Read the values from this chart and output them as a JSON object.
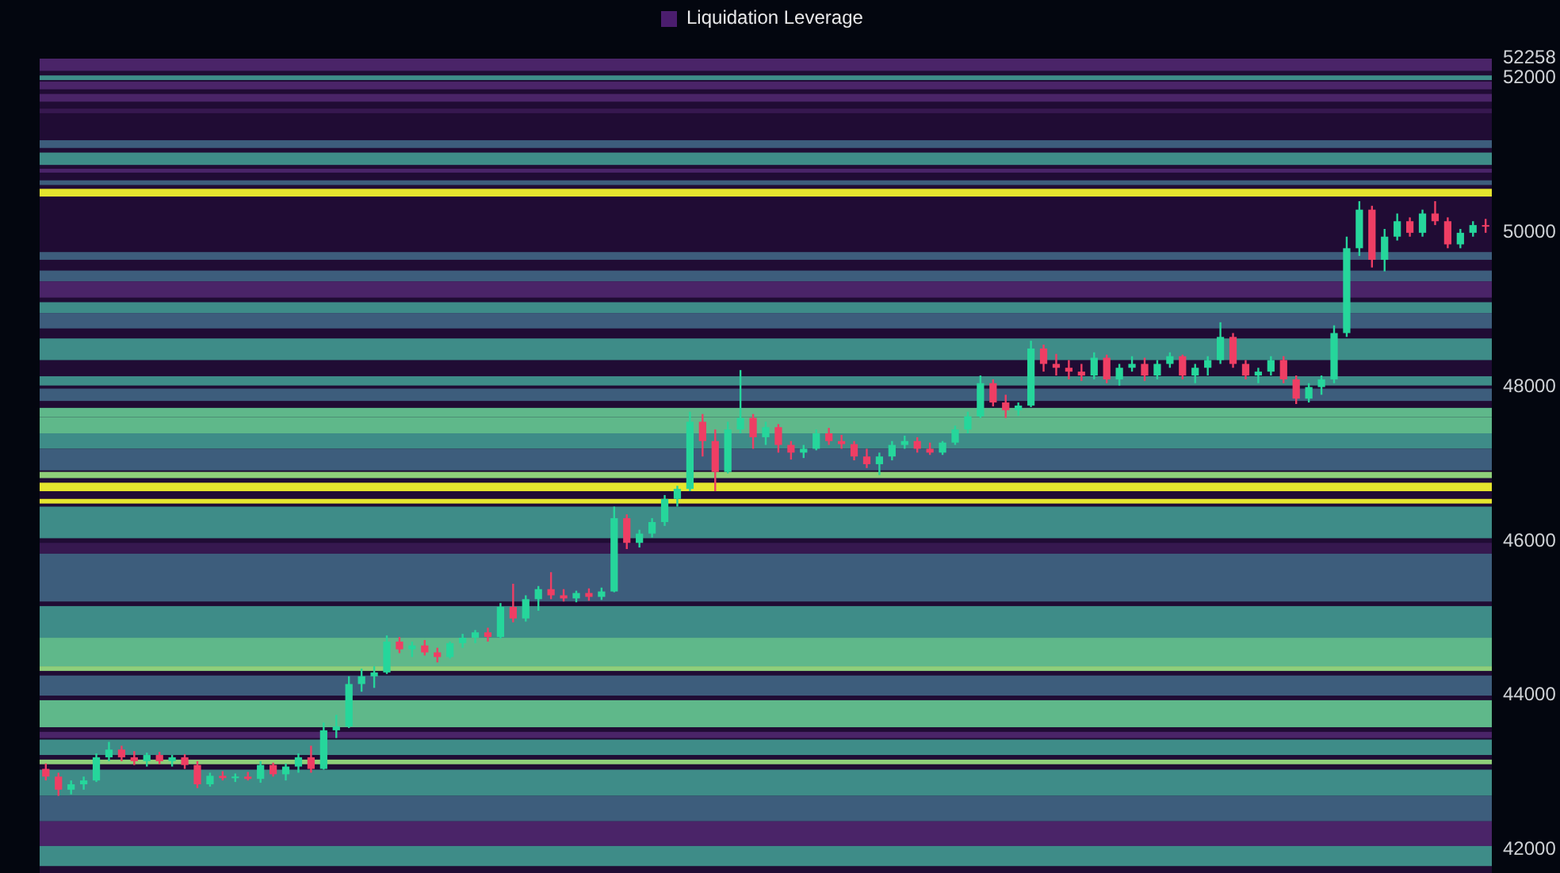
{
  "chart_data": {
    "type": "candlestick",
    "legend_title": "Liquidation Leverage",
    "categories": [
      null,
      null,
      null,
      null,
      null,
      null,
      null,
      null,
      null,
      null,
      null,
      null,
      null,
      null,
      null,
      null,
      null,
      null,
      null,
      null,
      null,
      null,
      null,
      null,
      null,
      null,
      null,
      null,
      null,
      null,
      null,
      null,
      null,
      null,
      null,
      null,
      null,
      null,
      null,
      null,
      null,
      null,
      null,
      null,
      null,
      null,
      null,
      null,
      null,
      null,
      null,
      null,
      null,
      null,
      null,
      null,
      null,
      null,
      null,
      null,
      null,
      null,
      null,
      null,
      null,
      null,
      null,
      null,
      null,
      null,
      null,
      null,
      null,
      null,
      null,
      null,
      null,
      null,
      null,
      null,
      null,
      null,
      null,
      null,
      null,
      null,
      null,
      null,
      null,
      null,
      null,
      null,
      null,
      null,
      null,
      null,
      null,
      null,
      null,
      null,
      null,
      null,
      null,
      null,
      null,
      null,
      null,
      null,
      null,
      null,
      null,
      null,
      null,
      null,
      null
    ],
    "ylim": [
      41700,
      52258
    ],
    "yticks": [
      42000,
      44000,
      46000,
      48000,
      50000,
      52000,
      52258
    ],
    "tick_labels": "y",
    "bands": [
      {
        "axis": "y",
        "from": 52100,
        "to": 52258,
        "color": "#4a2468"
      },
      {
        "axis": "y",
        "from": 51980,
        "to": 52040,
        "color": "#3e8c88"
      },
      {
        "axis": "y",
        "from": 51860,
        "to": 51960,
        "color": "#4a2468"
      },
      {
        "axis": "y",
        "from": 51700,
        "to": 51800,
        "color": "#4a2468"
      },
      {
        "axis": "y",
        "from": 51550,
        "to": 51610,
        "color": "#36184f"
      },
      {
        "axis": "y",
        "from": 51100,
        "to": 51200,
        "color": "#3d5d7c"
      },
      {
        "axis": "y",
        "from": 50880,
        "to": 51040,
        "color": "#3e8c88"
      },
      {
        "axis": "y",
        "from": 50780,
        "to": 50830,
        "color": "#4a2468"
      },
      {
        "axis": "y",
        "from": 50620,
        "to": 50680,
        "color": "#3d5d7c"
      },
      {
        "axis": "y",
        "from": 50470,
        "to": 50570,
        "color": "#e6e52e"
      },
      {
        "axis": "y",
        "from": 49650,
        "to": 49750,
        "color": "#3d5d7c"
      },
      {
        "axis": "y",
        "from": 49370,
        "to": 49510,
        "color": "#3d5d7c"
      },
      {
        "axis": "y",
        "from": 49160,
        "to": 49370,
        "color": "#4a2468"
      },
      {
        "axis": "y",
        "from": 48960,
        "to": 49100,
        "color": "#3e8c88"
      },
      {
        "axis": "y",
        "from": 48760,
        "to": 48960,
        "color": "#3d5d7c"
      },
      {
        "axis": "y",
        "from": 48350,
        "to": 48630,
        "color": "#3e8c88"
      },
      {
        "axis": "y",
        "from": 48020,
        "to": 48140,
        "color": "#3e8c88"
      },
      {
        "axis": "y",
        "from": 47820,
        "to": 47980,
        "color": "#3d5d7c"
      },
      {
        "axis": "y",
        "from": 47610,
        "to": 47730,
        "color": "#5fb88a"
      },
      {
        "axis": "y",
        "from": 47400,
        "to": 47610,
        "color": "#5fb88a"
      },
      {
        "axis": "y",
        "from": 47200,
        "to": 47400,
        "color": "#3e8c88"
      },
      {
        "axis": "y",
        "from": 46920,
        "to": 47200,
        "color": "#3d5d7c"
      },
      {
        "axis": "y",
        "from": 46820,
        "to": 46900,
        "color": "#8fcf7a"
      },
      {
        "axis": "y",
        "from": 46650,
        "to": 46760,
        "color": "#e6e52e"
      },
      {
        "axis": "y",
        "from": 46490,
        "to": 46550,
        "color": "#e6e52e"
      },
      {
        "axis": "y",
        "from": 46040,
        "to": 46450,
        "color": "#3e8c88"
      },
      {
        "axis": "y",
        "from": 45840,
        "to": 45980,
        "color": "#36184f"
      },
      {
        "axis": "y",
        "from": 45220,
        "to": 45840,
        "color": "#3d5d7c"
      },
      {
        "axis": "y",
        "from": 44750,
        "to": 45160,
        "color": "#3e8c88"
      },
      {
        "axis": "y",
        "from": 44380,
        "to": 44750,
        "color": "#5fb88a"
      },
      {
        "axis": "y",
        "from": 44320,
        "to": 44380,
        "color": "#8fcf7a"
      },
      {
        "axis": "y",
        "from": 44000,
        "to": 44260,
        "color": "#3d5d7c"
      },
      {
        "axis": "y",
        "from": 43590,
        "to": 43940,
        "color": "#5fb88a"
      },
      {
        "axis": "y",
        "from": 43450,
        "to": 43530,
        "color": "#4a2468"
      },
      {
        "axis": "y",
        "from": 43230,
        "to": 43430,
        "color": "#3e8c88"
      },
      {
        "axis": "y",
        "from": 43110,
        "to": 43170,
        "color": "#8fcf7a"
      },
      {
        "axis": "y",
        "from": 42700,
        "to": 43040,
        "color": "#3e8c88"
      },
      {
        "axis": "y",
        "from": 42370,
        "to": 42700,
        "color": "#3d5d7c"
      },
      {
        "axis": "y",
        "from": 42050,
        "to": 42370,
        "color": "#4a2468"
      },
      {
        "axis": "y",
        "from": 41790,
        "to": 42050,
        "color": "#3e8c88"
      }
    ],
    "ohlc": [
      [
        43050,
        43120,
        42900,
        42950
      ],
      [
        42950,
        43000,
        42700,
        42780
      ],
      [
        42780,
        42900,
        42720,
        42850
      ],
      [
        42850,
        42950,
        42780,
        42900
      ],
      [
        42900,
        43250,
        42880,
        43200
      ],
      [
        43200,
        43400,
        43150,
        43300
      ],
      [
        43300,
        43350,
        43150,
        43200
      ],
      [
        43200,
        43280,
        43100,
        43150
      ],
      [
        43150,
        43260,
        43080,
        43230
      ],
      [
        43230,
        43270,
        43110,
        43150
      ],
      [
        43150,
        43230,
        43080,
        43200
      ],
      [
        43200,
        43240,
        43050,
        43100
      ],
      [
        43100,
        43150,
        42800,
        42850
      ],
      [
        42850,
        43000,
        42820,
        42960
      ],
      [
        42960,
        43020,
        42900,
        42930
      ],
      [
        42930,
        42990,
        42880,
        42950
      ],
      [
        42950,
        43010,
        42900,
        42920
      ],
      [
        42920,
        43150,
        42870,
        43100
      ],
      [
        43100,
        43130,
        42950,
        42980
      ],
      [
        42980,
        43120,
        42900,
        43080
      ],
      [
        43080,
        43250,
        43000,
        43200
      ],
      [
        43200,
        43350,
        43000,
        43050
      ],
      [
        43050,
        43650,
        43040,
        43550
      ],
      [
        43550,
        43750,
        43450,
        43600
      ],
      [
        43600,
        44250,
        43580,
        44150
      ],
      [
        44150,
        44350,
        44050,
        44250
      ],
      [
        44250,
        44380,
        44100,
        44300
      ],
      [
        44300,
        44780,
        44280,
        44700
      ],
      [
        44700,
        44760,
        44550,
        44600
      ],
      [
        44600,
        44700,
        44500,
        44650
      ],
      [
        44650,
        44720,
        44520,
        44560
      ],
      [
        44560,
        44620,
        44430,
        44500
      ],
      [
        44500,
        44700,
        44480,
        44680
      ],
      [
        44680,
        44800,
        44620,
        44750
      ],
      [
        44750,
        44850,
        44680,
        44820
      ],
      [
        44820,
        44880,
        44700,
        44760
      ],
      [
        44760,
        45200,
        44740,
        45150
      ],
      [
        45150,
        45450,
        44950,
        45000
      ],
      [
        45000,
        45300,
        44960,
        45250
      ],
      [
        45250,
        45420,
        45100,
        45380
      ],
      [
        45380,
        45600,
        45250,
        45300
      ],
      [
        45300,
        45380,
        45220,
        45260
      ],
      [
        45260,
        45360,
        45210,
        45330
      ],
      [
        45330,
        45390,
        45230,
        45280
      ],
      [
        45280,
        45400,
        45240,
        45350
      ],
      [
        45350,
        46450,
        45340,
        46300
      ],
      [
        46300,
        46350,
        45900,
        45980
      ],
      [
        45980,
        46150,
        45920,
        46100
      ],
      [
        46100,
        46300,
        46050,
        46250
      ],
      [
        46250,
        46600,
        46200,
        46550
      ],
      [
        46550,
        46720,
        46450,
        46680
      ],
      [
        46680,
        47680,
        46650,
        47550
      ],
      [
        47550,
        47650,
        47100,
        47300
      ],
      [
        47300,
        47450,
        46650,
        46900
      ],
      [
        46900,
        47550,
        46880,
        47450
      ],
      [
        47450,
        48220,
        47400,
        47600
      ],
      [
        47600,
        47650,
        47200,
        47350
      ],
      [
        47350,
        47550,
        47250,
        47480
      ],
      [
        47480,
        47520,
        47150,
        47250
      ],
      [
        47250,
        47300,
        47060,
        47150
      ],
      [
        47150,
        47250,
        47080,
        47200
      ],
      [
        47200,
        47450,
        47180,
        47400
      ],
      [
        47400,
        47470,
        47250,
        47300
      ],
      [
        47300,
        47380,
        47200,
        47260
      ],
      [
        47260,
        47300,
        47050,
        47100
      ],
      [
        47100,
        47200,
        46950,
        47000
      ],
      [
        47000,
        47150,
        46860,
        47100
      ],
      [
        47100,
        47300,
        47050,
        47250
      ],
      [
        47250,
        47370,
        47200,
        47300
      ],
      [
        47300,
        47350,
        47150,
        47200
      ],
      [
        47200,
        47280,
        47120,
        47150
      ],
      [
        47150,
        47300,
        47120,
        47280
      ],
      [
        47280,
        47500,
        47250,
        47450
      ],
      [
        47450,
        47680,
        47400,
        47620
      ],
      [
        47620,
        48150,
        47600,
        48050
      ],
      [
        48050,
        48100,
        47750,
        47800
      ],
      [
        47800,
        47900,
        47600,
        47700
      ],
      [
        47700,
        47800,
        47630,
        47760
      ],
      [
        47760,
        48600,
        47740,
        48500
      ],
      [
        48500,
        48550,
        48200,
        48300
      ],
      [
        48300,
        48430,
        48150,
        48250
      ],
      [
        48250,
        48350,
        48100,
        48200
      ],
      [
        48200,
        48300,
        48080,
        48150
      ],
      [
        48150,
        48450,
        48100,
        48380
      ],
      [
        48380,
        48420,
        48050,
        48100
      ],
      [
        48100,
        48300,
        48020,
        48250
      ],
      [
        48250,
        48400,
        48200,
        48300
      ],
      [
        48300,
        48380,
        48080,
        48150
      ],
      [
        48150,
        48350,
        48100,
        48300
      ],
      [
        48300,
        48450,
        48250,
        48400
      ],
      [
        48400,
        48420,
        48100,
        48150
      ],
      [
        48150,
        48300,
        48050,
        48250
      ],
      [
        48250,
        48400,
        48150,
        48350
      ],
      [
        48350,
        48840,
        48300,
        48650
      ],
      [
        48650,
        48700,
        48250,
        48300
      ],
      [
        48300,
        48350,
        48100,
        48150
      ],
      [
        48150,
        48250,
        48050,
        48200
      ],
      [
        48200,
        48400,
        48150,
        48350
      ],
      [
        48350,
        48400,
        48050,
        48100
      ],
      [
        48100,
        48150,
        47780,
        47850
      ],
      [
        47850,
        48050,
        47800,
        48000
      ],
      [
        48000,
        48150,
        47900,
        48100
      ],
      [
        48100,
        48800,
        48050,
        48700
      ],
      [
        48700,
        49950,
        48650,
        49800
      ],
      [
        49800,
        50410,
        49700,
        50300
      ],
      [
        50300,
        50350,
        49550,
        49650
      ],
      [
        49650,
        50050,
        49500,
        49950
      ],
      [
        49950,
        50250,
        49900,
        50150
      ],
      [
        50150,
        50200,
        49950,
        50000
      ],
      [
        50000,
        50300,
        49950,
        50250
      ],
      [
        50250,
        50410,
        50100,
        50150
      ],
      [
        50150,
        50200,
        49800,
        49850
      ],
      [
        49850,
        50050,
        49800,
        50000
      ],
      [
        50000,
        50150,
        49950,
        50100
      ],
      [
        50100,
        50180,
        50000,
        50080
      ]
    ],
    "colors": [
      "#ef3e64",
      "#ef3e64",
      "#26d69b",
      "#26d69b",
      "#26d69b",
      "#26d69b",
      "#ef3e64",
      "#ef3e64",
      "#26d69b",
      "#ef3e64",
      "#26d69b",
      "#ef3e64",
      "#ef3e64",
      "#26d69b",
      "#ef3e64",
      "#26d69b",
      "#ef3e64",
      "#26d69b",
      "#ef3e64",
      "#26d69b",
      "#26d69b",
      "#ef3e64",
      "#26d69b",
      "#26d69b",
      "#26d69b",
      "#26d69b",
      "#26d69b",
      "#26d69b",
      "#ef3e64",
      "#26d69b",
      "#ef3e64",
      "#ef3e64",
      "#26d69b",
      "#26d69b",
      "#26d69b",
      "#ef3e64",
      "#26d69b",
      "#ef3e64",
      "#26d69b",
      "#26d69b",
      "#ef3e64",
      "#ef3e64",
      "#26d69b",
      "#ef3e64",
      "#26d69b",
      "#26d69b",
      "#ef3e64",
      "#26d69b",
      "#26d69b",
      "#26d69b",
      "#26d69b",
      "#26d69b",
      "#ef3e64",
      "#ef3e64",
      "#26d69b",
      "#26d69b",
      "#ef3e64",
      "#26d69b",
      "#ef3e64",
      "#ef3e64",
      "#26d69b",
      "#26d69b",
      "#ef3e64",
      "#ef3e64",
      "#ef3e64",
      "#ef3e64",
      "#26d69b",
      "#26d69b",
      "#26d69b",
      "#ef3e64",
      "#ef3e64",
      "#26d69b",
      "#26d69b",
      "#26d69b",
      "#26d69b",
      "#ef3e64",
      "#ef3e64",
      "#26d69b",
      "#26d69b",
      "#ef3e64",
      "#ef3e64",
      "#ef3e64",
      "#ef3e64",
      "#26d69b",
      "#ef3e64",
      "#26d69b",
      "#26d69b",
      "#ef3e64",
      "#26d69b",
      "#26d69b",
      "#ef3e64",
      "#26d69b",
      "#26d69b",
      "#26d69b",
      "#ef3e64",
      "#ef3e64",
      "#26d69b",
      "#26d69b",
      "#ef3e64",
      "#ef3e64",
      "#26d69b",
      "#26d69b",
      "#26d69b",
      "#26d69b",
      "#26d69b",
      "#ef3e64",
      "#26d69b",
      "#26d69b",
      "#ef3e64",
      "#26d69b",
      "#ef3e64",
      "#ef3e64",
      "#26d69b",
      "#26d69b",
      "#ef3e64"
    ]
  }
}
